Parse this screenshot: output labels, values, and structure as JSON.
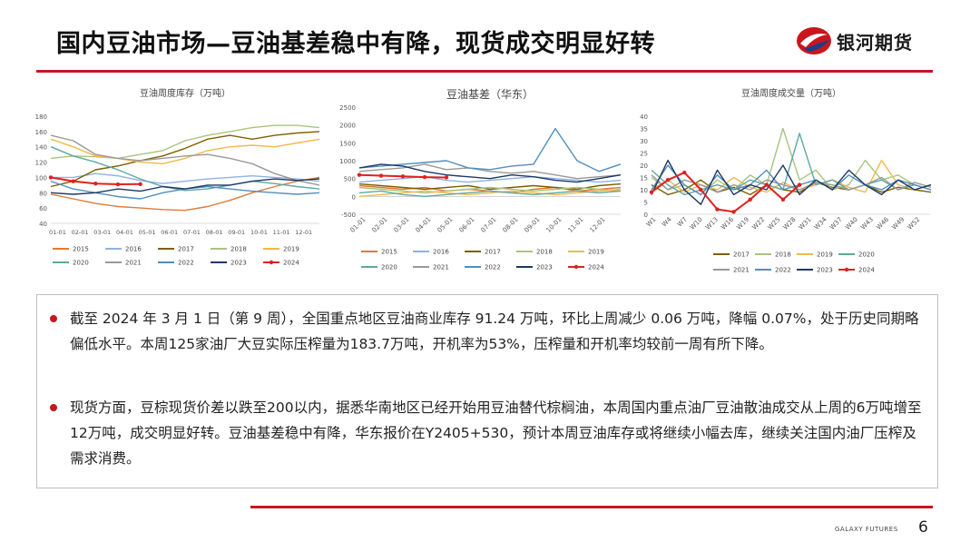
{
  "slide": {
    "title": "国内豆油市场—豆油基差稳中有降，现货成交明显好转",
    "logo_text": "银河期货",
    "footer": "GALAXY FUTURES",
    "page_number": "6",
    "accent_color": "#c8161d"
  },
  "text": {
    "bullet1": "截至 2024 年 3 月 1 日（第 9 周），全国重点地区豆油商业库存 91.24 万吨，环比上周减少 0.06 万吨，降幅 0.07%，处于历史同期略偏低水平。本周125家油厂大豆实际压榨量为183.7万吨，开机率为53%，压榨量和开机率均较前一周有所下降。",
    "bullet2": "现货方面，豆棕现货价差以跌至200以内，据悉华南地区已经开始用豆油替代棕榈油，本周国内重点油厂豆油散油成交从上周的6万吨增至12万吨，成交明显好转。豆油基差稳中有降，华东报价在Y2405+530，预计本周豆油库存或将继续小幅去库，继续关注国内油厂压榨及需求消费。"
  },
  "chart_data": [
    {
      "type": "line",
      "title": "豆油周度库存（万吨）",
      "ylim": [
        40,
        180
      ],
      "yticks": [
        40,
        60,
        80,
        100,
        120,
        140,
        160,
        180
      ],
      "x_ticks": [
        "01-01",
        "02-01",
        "03-01",
        "04-01",
        "05-01",
        "06-01",
        "07-01",
        "08-01",
        "09-01",
        "10-01",
        "11-01",
        "12-01"
      ],
      "legend_position": "bottom",
      "series": [
        {
          "name": "2015",
          "color": "#e07b39",
          "values": [
            78,
            72,
            66,
            62,
            60,
            58,
            57,
            62,
            70,
            80,
            88,
            95,
            100
          ]
        },
        {
          "name": "2016",
          "color": "#8db3e2",
          "values": [
            100,
            100,
            105,
            102,
            96,
            92,
            95,
            98,
            100,
            102,
            100,
            98,
            95
          ]
        },
        {
          "name": "2017",
          "color": "#7f6000",
          "values": [
            88,
            95,
            110,
            115,
            122,
            128,
            138,
            150,
            155,
            150,
            155,
            158,
            160
          ]
        },
        {
          "name": "2018",
          "color": "#a9c47f",
          "values": [
            125,
            128,
            127,
            125,
            130,
            135,
            148,
            155,
            160,
            165,
            168,
            168,
            165
          ]
        },
        {
          "name": "2019",
          "color": "#f0b94a",
          "values": [
            150,
            140,
            128,
            125,
            120,
            118,
            125,
            135,
            140,
            142,
            140,
            145,
            150
          ]
        },
        {
          "name": "2020",
          "color": "#5fa8a0",
          "values": [
            140,
            128,
            120,
            110,
            98,
            88,
            83,
            85,
            90,
            95,
            92,
            88,
            85
          ]
        },
        {
          "name": "2021",
          "color": "#999999",
          "values": [
            155,
            148,
            130,
            125,
            122,
            125,
            128,
            130,
            125,
            118,
            105,
            96,
            90
          ]
        },
        {
          "name": "2022",
          "color": "#4f8fc0",
          "values": [
            95,
            85,
            80,
            75,
            72,
            80,
            85,
            88,
            85,
            82,
            80,
            78,
            80
          ]
        },
        {
          "name": "2023",
          "color": "#1f3864",
          "values": [
            80,
            78,
            80,
            85,
            82,
            88,
            85,
            90,
            90,
            95,
            98,
            96,
            98
          ]
        },
        {
          "name": "2024",
          "color": "#e02020",
          "values": [
            100,
            95,
            92,
            91,
            91.24
          ]
        }
      ]
    },
    {
      "type": "line",
      "title": "豆油基差（华东）",
      "ylim": [
        -500,
        2500
      ],
      "yticks": [
        -500,
        0,
        500,
        1000,
        1500,
        2000,
        2500
      ],
      "x_ticks": [
        "01-01",
        "02-01",
        "03-01",
        "04-01",
        "05-01",
        "06-01",
        "07-01",
        "08-01",
        "09-01",
        "10-01",
        "11-01",
        "12-01"
      ],
      "legend_position": "bottom",
      "series": [
        {
          "name": "2015",
          "color": "#e07b39",
          "values": [
            300,
            250,
            200,
            250,
            150,
            200,
            150,
            100,
            200,
            250,
            150,
            200,
            250
          ]
        },
        {
          "name": "2016",
          "color": "#8db3e2",
          "values": [
            400,
            450,
            500,
            550,
            450,
            400,
            450,
            500,
            550,
            500,
            450,
            400,
            450
          ]
        },
        {
          "name": "2017",
          "color": "#7f6000",
          "values": [
            350,
            300,
            250,
            200,
            250,
            300,
            200,
            250,
            300,
            250,
            200,
            300,
            350
          ]
        },
        {
          "name": "2018",
          "color": "#a9c47f",
          "values": [
            250,
            200,
            150,
            100,
            150,
            200,
            250,
            200,
            150,
            200,
            250,
            200,
            150
          ]
        },
        {
          "name": "2019",
          "color": "#f0b94a",
          "values": [
            0,
            50,
            100,
            150,
            100,
            50,
            100,
            150,
            100,
            50,
            100,
            150,
            200
          ]
        },
        {
          "name": "2020",
          "color": "#5fa8a0",
          "values": [
            100,
            150,
            50,
            0,
            50,
            100,
            150,
            100,
            50,
            100,
            150,
            100,
            150
          ]
        },
        {
          "name": "2021",
          "color": "#999999",
          "values": [
            700,
            750,
            800,
            900,
            750,
            800,
            700,
            650,
            700,
            600,
            500,
            550,
            600
          ]
        },
        {
          "name": "2022",
          "color": "#4f8fc0",
          "values": [
            800,
            850,
            900,
            950,
            1000,
            800,
            750,
            850,
            900,
            1900,
            1000,
            700,
            900
          ]
        },
        {
          "name": "2023",
          "color": "#1f3864",
          "values": [
            800,
            900,
            850,
            700,
            600,
            550,
            500,
            600,
            550,
            450,
            400,
            500,
            600
          ]
        },
        {
          "name": "2024",
          "color": "#e02020",
          "values": [
            600,
            580,
            560,
            540,
            530
          ]
        }
      ]
    },
    {
      "type": "line",
      "title": "豆油周度成交量（万吨）",
      "ylim": [
        0,
        40
      ],
      "yticks": [
        0,
        5,
        10,
        15,
        20,
        25,
        30,
        35,
        40
      ],
      "x_ticks": [
        "W1",
        "W4",
        "W7",
        "W10",
        "W13",
        "W16",
        "W19",
        "W22",
        "W25",
        "W28",
        "W31",
        "W34",
        "W37",
        "W40",
        "W43",
        "W46",
        "W49",
        "W52"
      ],
      "legend_position": "bottom",
      "series": [
        {
          "name": "2017",
          "color": "#7f6000",
          "values": [
            12,
            8,
            10,
            14,
            9,
            11,
            8,
            12,
            10,
            9,
            13,
            11,
            10,
            12,
            9,
            11,
            10,
            9
          ]
        },
        {
          "name": "2018",
          "color": "#a9c47f",
          "values": [
            15,
            10,
            12,
            8,
            14,
            10,
            16,
            12,
            35,
            14,
            18,
            10,
            12,
            22,
            14,
            16,
            12,
            10
          ]
        },
        {
          "name": "2019",
          "color": "#f0b94a",
          "values": [
            10,
            14,
            9,
            12,
            10,
            15,
            11,
            9,
            13,
            10,
            12,
            14,
            11,
            9,
            22,
            12,
            10,
            12
          ]
        },
        {
          "name": "2020",
          "color": "#5fa8a0",
          "values": [
            18,
            12,
            8,
            10,
            12,
            10,
            14,
            12,
            10,
            33,
            12,
            14,
            10,
            12,
            14,
            10,
            12,
            10
          ]
        },
        {
          "name": "2021",
          "color": "#999999",
          "values": [
            16,
            10,
            14,
            12,
            9,
            12,
            10,
            14,
            12,
            10,
            13,
            12,
            10,
            12,
            15,
            10,
            13,
            11
          ]
        },
        {
          "name": "2022",
          "color": "#4f8fc0",
          "values": [
            10,
            20,
            12,
            8,
            16,
            10,
            12,
            18,
            10,
            12,
            14,
            10,
            16,
            12,
            10,
            14,
            12,
            10
          ]
        },
        {
          "name": "2023",
          "color": "#1f3864",
          "values": [
            8,
            22,
            10,
            4,
            18,
            8,
            12,
            10,
            20,
            8,
            14,
            10,
            18,
            12,
            8,
            14,
            10,
            12
          ]
        },
        {
          "name": "2024",
          "color": "#e02020",
          "values": [
            9,
            14,
            17,
            10,
            2,
            1,
            6,
            12,
            6,
            12
          ]
        }
      ]
    }
  ]
}
